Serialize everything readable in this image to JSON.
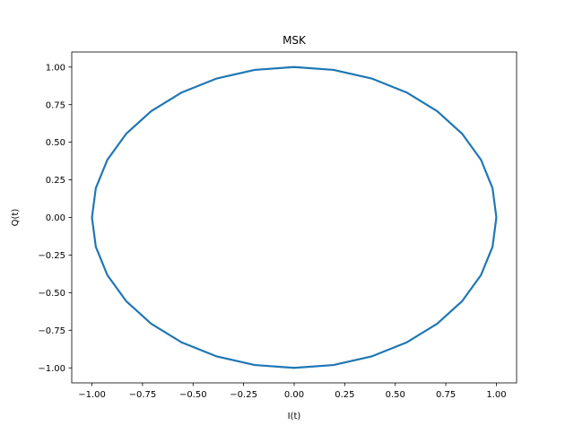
{
  "chart_data": {
    "type": "line",
    "title": "MSK",
    "xlabel": "I(t)",
    "ylabel": "Q(t)",
    "xlim": [
      -1.1,
      1.1
    ],
    "ylim": [
      -1.1,
      1.1
    ],
    "xticks": [
      -1.0,
      -0.75,
      -0.5,
      -0.25,
      0.0,
      0.25,
      0.5,
      0.75,
      1.0
    ],
    "xtick_labels": [
      "−1.00",
      "−0.75",
      "−0.50",
      "−0.25",
      "0.00",
      "0.25",
      "0.50",
      "0.75",
      "1.00"
    ],
    "yticks": [
      -1.0,
      -0.75,
      -0.5,
      -0.25,
      0.0,
      0.25,
      0.5,
      0.75,
      1.0
    ],
    "ytick_labels": [
      "−1.00",
      "−0.75",
      "−0.50",
      "−0.25",
      "0.00",
      "0.25",
      "0.50",
      "0.75",
      "1.00"
    ],
    "grid": false,
    "line_color": "#1f77b4",
    "series": [
      {
        "x": [
          1.0,
          0.981,
          0.924,
          0.831,
          0.707,
          0.556,
          0.383,
          0.195,
          0.0,
          -0.195,
          -0.383,
          -0.556,
          -0.707,
          -0.831,
          -0.924,
          -0.981,
          -1.0,
          -0.981,
          -0.924,
          -0.831,
          -0.707,
          -0.556,
          -0.383,
          -0.195,
          0.0,
          0.195,
          0.383,
          0.556,
          0.707,
          0.831,
          0.924,
          0.981,
          1.0
        ],
        "y": [
          0.0,
          0.195,
          0.383,
          0.556,
          0.707,
          0.831,
          0.924,
          0.981,
          1.0,
          0.981,
          0.924,
          0.831,
          0.707,
          0.556,
          0.383,
          0.195,
          0.0,
          -0.195,
          -0.383,
          -0.556,
          -0.707,
          -0.831,
          -0.924,
          -0.981,
          -1.0,
          -0.981,
          -0.924,
          -0.831,
          -0.707,
          -0.556,
          -0.383,
          -0.195,
          0.0
        ]
      }
    ]
  }
}
